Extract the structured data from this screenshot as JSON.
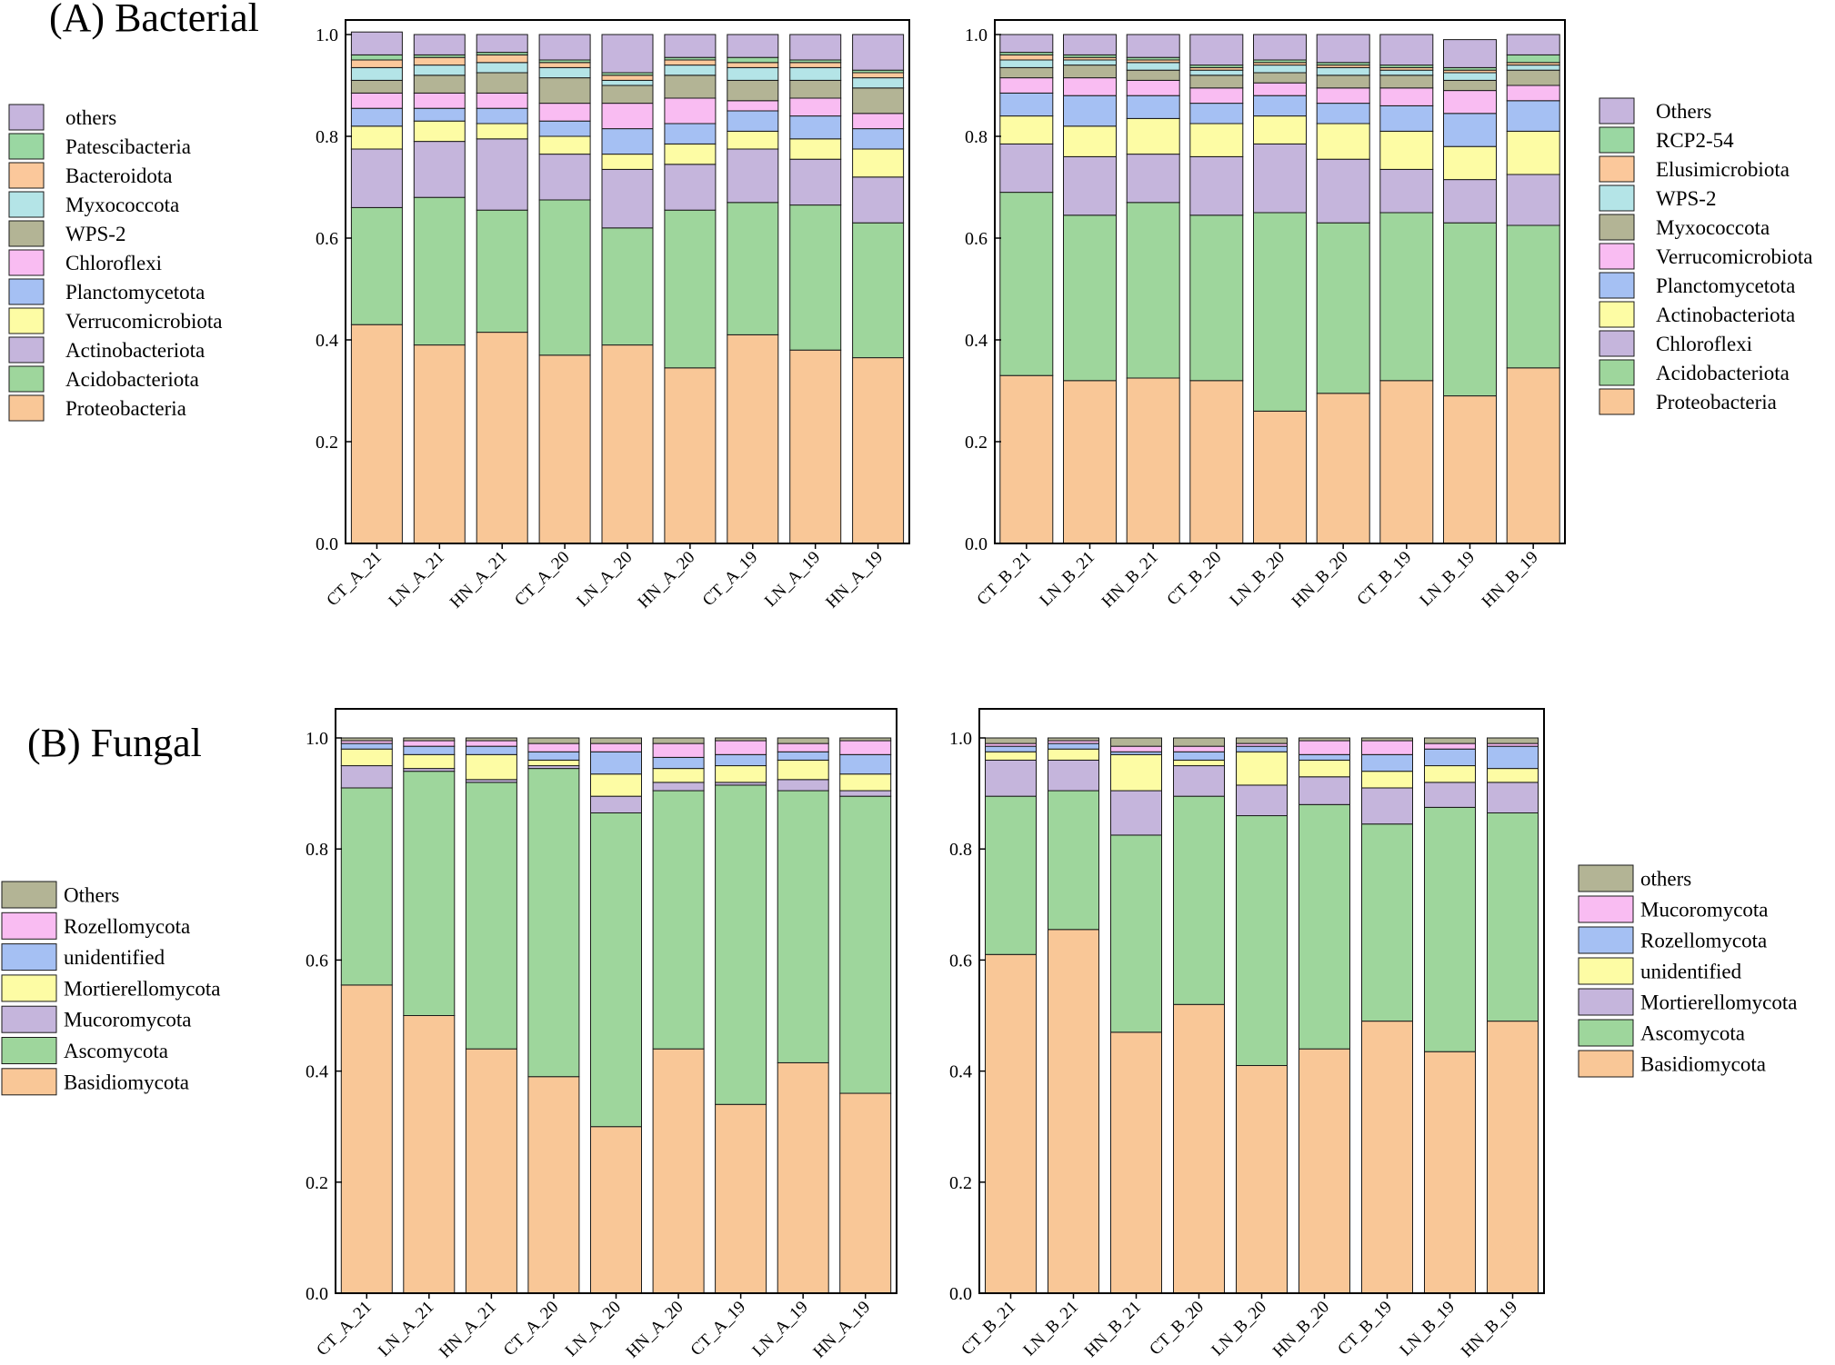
{
  "panel_labels": {
    "bacterial": "(A) Bacterial",
    "fungal": "(B) Fungal"
  },
  "colors": {
    "orange": "#f9c797",
    "green": "#9ed69c",
    "purple": "#c5b5dc",
    "yellow": "#fdfca4",
    "blue": "#a5c0f3",
    "pink": "#f9bcf2",
    "olive": "#b3b495",
    "cyan": "#b4e4e7",
    "peach": "#fbc89b",
    "brightgreen": "#9ad7a2",
    "lavender": "#c6b5dd"
  },
  "chart_data": [
    {
      "id": "bacterial_A",
      "type": "bar",
      "stacked": true,
      "categories": [
        "CT_A_21",
        "LN_A_21",
        "HN_A_21",
        "CT_A_20",
        "LN_A_20",
        "HN_A_20",
        "CT_A_19",
        "LN_A_19",
        "HN_A_19"
      ],
      "ylim": [
        0,
        1
      ],
      "yticks": [
        "0.0",
        "0.2",
        "0.4",
        "0.6",
        "0.8",
        "1.0"
      ],
      "series": [
        {
          "name": "Proteobacteria",
          "color": "orange",
          "values": [
            0.43,
            0.39,
            0.415,
            0.37,
            0.39,
            0.345,
            0.41,
            0.38,
            0.365
          ]
        },
        {
          "name": "Acidobacteriota",
          "color": "green",
          "values": [
            0.23,
            0.29,
            0.24,
            0.305,
            0.23,
            0.31,
            0.26,
            0.285,
            0.265
          ]
        },
        {
          "name": "Actinobacteriota",
          "color": "purple",
          "values": [
            0.115,
            0.11,
            0.14,
            0.09,
            0.115,
            0.09,
            0.105,
            0.09,
            0.09
          ]
        },
        {
          "name": "Verrucomicrobiota",
          "color": "yellow",
          "values": [
            0.045,
            0.04,
            0.03,
            0.035,
            0.03,
            0.04,
            0.035,
            0.04,
            0.055
          ]
        },
        {
          "name": "Planctomycetota",
          "color": "blue",
          "values": [
            0.035,
            0.025,
            0.03,
            0.03,
            0.05,
            0.04,
            0.04,
            0.045,
            0.04
          ]
        },
        {
          "name": "Chloroflexi",
          "color": "pink",
          "values": [
            0.03,
            0.03,
            0.03,
            0.035,
            0.05,
            0.05,
            0.02,
            0.035,
            0.03
          ]
        },
        {
          "name": "WPS-2",
          "color": "olive",
          "values": [
            0.025,
            0.035,
            0.04,
            0.05,
            0.035,
            0.045,
            0.04,
            0.035,
            0.05
          ]
        },
        {
          "name": "Myxococcota",
          "color": "cyan",
          "values": [
            0.025,
            0.02,
            0.02,
            0.02,
            0.01,
            0.02,
            0.025,
            0.025,
            0.02
          ]
        },
        {
          "name": "Bacteroidota",
          "color": "peach",
          "values": [
            0.015,
            0.015,
            0.015,
            0.01,
            0.01,
            0.01,
            0.01,
            0.01,
            0.01
          ]
        },
        {
          "name": "Patescibacteria",
          "color": "brightgreen",
          "values": [
            0.01,
            0.005,
            0.005,
            0.005,
            0.005,
            0.005,
            0.01,
            0.005,
            0.005
          ]
        },
        {
          "name": "others",
          "color": "lavender",
          "values": [
            0.045,
            0.04,
            0.035,
            0.05,
            0.075,
            0.045,
            0.045,
            0.05,
            0.07
          ]
        }
      ]
    },
    {
      "id": "bacterial_B",
      "type": "bar",
      "stacked": true,
      "categories": [
        "CT_B_21",
        "LN_B_21",
        "HN_B_21",
        "CT_B_20",
        "LN_B_20",
        "HN_B_20",
        "CT_B_19",
        "LN_B_19",
        "HN_B_19"
      ],
      "ylim": [
        0,
        1
      ],
      "yticks": [
        "0.0",
        "0.2",
        "0.4",
        "0.6",
        "0.8",
        "1.0"
      ],
      "series": [
        {
          "name": "Proteobacteria",
          "color": "orange",
          "values": [
            0.33,
            0.32,
            0.325,
            0.32,
            0.26,
            0.295,
            0.32,
            0.29,
            0.345
          ]
        },
        {
          "name": "Acidobacteriota",
          "color": "green",
          "values": [
            0.36,
            0.325,
            0.345,
            0.325,
            0.39,
            0.335,
            0.33,
            0.34,
            0.28
          ]
        },
        {
          "name": "Chloroflexi",
          "color": "purple",
          "values": [
            0.095,
            0.115,
            0.095,
            0.115,
            0.135,
            0.125,
            0.085,
            0.085,
            0.1
          ]
        },
        {
          "name": "Actinobacteriota",
          "color": "yellow",
          "values": [
            0.055,
            0.06,
            0.07,
            0.065,
            0.055,
            0.07,
            0.075,
            0.065,
            0.085
          ]
        },
        {
          "name": "Planctomycetota",
          "color": "blue",
          "values": [
            0.045,
            0.06,
            0.045,
            0.04,
            0.04,
            0.04,
            0.05,
            0.065,
            0.06
          ]
        },
        {
          "name": "Verrucomicrobiota",
          "color": "pink",
          "values": [
            0.03,
            0.035,
            0.03,
            0.03,
            0.025,
            0.03,
            0.035,
            0.045,
            0.03
          ]
        },
        {
          "name": "Myxococcota",
          "color": "olive",
          "values": [
            0.02,
            0.025,
            0.02,
            0.025,
            0.02,
            0.025,
            0.025,
            0.02,
            0.03
          ]
        },
        {
          "name": "WPS-2",
          "color": "cyan",
          "values": [
            0.015,
            0.01,
            0.015,
            0.01,
            0.015,
            0.015,
            0.01,
            0.015,
            0.01
          ]
        },
        {
          "name": "Elusimicrobiota",
          "color": "peach",
          "values": [
            0.01,
            0.005,
            0.005,
            0.005,
            0.005,
            0.005,
            0.005,
            0.005,
            0.005
          ]
        },
        {
          "name": "RCP2-54",
          "color": "brightgreen",
          "values": [
            0.005,
            0.005,
            0.005,
            0.005,
            0.005,
            0.005,
            0.005,
            0.005,
            0.015
          ]
        },
        {
          "name": "Others",
          "color": "lavender",
          "values": [
            0.035,
            0.04,
            0.045,
            0.06,
            0.05,
            0.055,
            0.06,
            0.055,
            0.04
          ]
        }
      ]
    },
    {
      "id": "fungal_A",
      "type": "bar",
      "stacked": true,
      "categories": [
        "CT_A_21",
        "LN_A_21",
        "HN_A_21",
        "CT_A_20",
        "LN_A_20",
        "HN_A_20",
        "CT_A_19",
        "LN_A_19",
        "HN_A_19"
      ],
      "ylim": [
        0,
        1
      ],
      "yticks": [
        "0.0",
        "0.2",
        "0.4",
        "0.6",
        "0.8",
        "1.0"
      ],
      "series": [
        {
          "name": "Basidiomycota",
          "color": "orange",
          "values": [
            0.555,
            0.5,
            0.44,
            0.39,
            0.3,
            0.44,
            0.34,
            0.415,
            0.36
          ]
        },
        {
          "name": "Ascomycota",
          "color": "green",
          "values": [
            0.355,
            0.44,
            0.48,
            0.555,
            0.565,
            0.465,
            0.575,
            0.49,
            0.535
          ]
        },
        {
          "name": "Mucoromycota",
          "color": "purple",
          "values": [
            0.04,
            0.005,
            0.005,
            0.005,
            0.03,
            0.015,
            0.005,
            0.02,
            0.01
          ]
        },
        {
          "name": "Mortierellomycota",
          "color": "yellow",
          "values": [
            0.03,
            0.025,
            0.045,
            0.01,
            0.04,
            0.025,
            0.03,
            0.035,
            0.03
          ]
        },
        {
          "name": "unidentified",
          "color": "blue",
          "values": [
            0.01,
            0.015,
            0.015,
            0.015,
            0.04,
            0.02,
            0.02,
            0.015,
            0.035
          ]
        },
        {
          "name": "Rozellomycota",
          "color": "pink",
          "values": [
            0.005,
            0.01,
            0.01,
            0.015,
            0.015,
            0.025,
            0.025,
            0.015,
            0.025
          ]
        },
        {
          "name": "Others",
          "color": "olive",
          "values": [
            0.005,
            0.005,
            0.005,
            0.01,
            0.01,
            0.01,
            0.005,
            0.01,
            0.005
          ]
        }
      ]
    },
    {
      "id": "fungal_B",
      "type": "bar",
      "stacked": true,
      "categories": [
        "CT_B_21",
        "LN_B_21",
        "HN_B_21",
        "CT_B_20",
        "LN_B_20",
        "HN_B_20",
        "CT_B_19",
        "LN_B_19",
        "HN_B_19"
      ],
      "ylim": [
        0,
        1
      ],
      "yticks": [
        "0.0",
        "0.2",
        "0.4",
        "0.6",
        "0.8",
        "1.0"
      ],
      "series": [
        {
          "name": "Basidiomycota",
          "color": "orange",
          "values": [
            0.61,
            0.655,
            0.47,
            0.52,
            0.41,
            0.44,
            0.49,
            0.435,
            0.49
          ]
        },
        {
          "name": "Ascomycota",
          "color": "green",
          "values": [
            0.285,
            0.25,
            0.355,
            0.375,
            0.45,
            0.44,
            0.355,
            0.44,
            0.375
          ]
        },
        {
          "name": "Mortierellomycota",
          "color": "purple",
          "values": [
            0.065,
            0.055,
            0.08,
            0.055,
            0.055,
            0.05,
            0.065,
            0.045,
            0.055
          ]
        },
        {
          "name": "unidentified",
          "color": "yellow",
          "values": [
            0.015,
            0.02,
            0.065,
            0.01,
            0.06,
            0.03,
            0.03,
            0.03,
            0.025
          ]
        },
        {
          "name": "Rozellomycota",
          "color": "blue",
          "values": [
            0.01,
            0.01,
            0.005,
            0.015,
            0.01,
            0.01,
            0.03,
            0.03,
            0.04
          ]
        },
        {
          "name": "Mucoromycota",
          "color": "pink",
          "values": [
            0.005,
            0.005,
            0.01,
            0.01,
            0.005,
            0.025,
            0.025,
            0.01,
            0.005
          ]
        },
        {
          "name": "others",
          "color": "olive",
          "values": [
            0.01,
            0.005,
            0.015,
            0.015,
            0.01,
            0.005,
            0.005,
            0.01,
            0.01
          ]
        }
      ]
    }
  ]
}
